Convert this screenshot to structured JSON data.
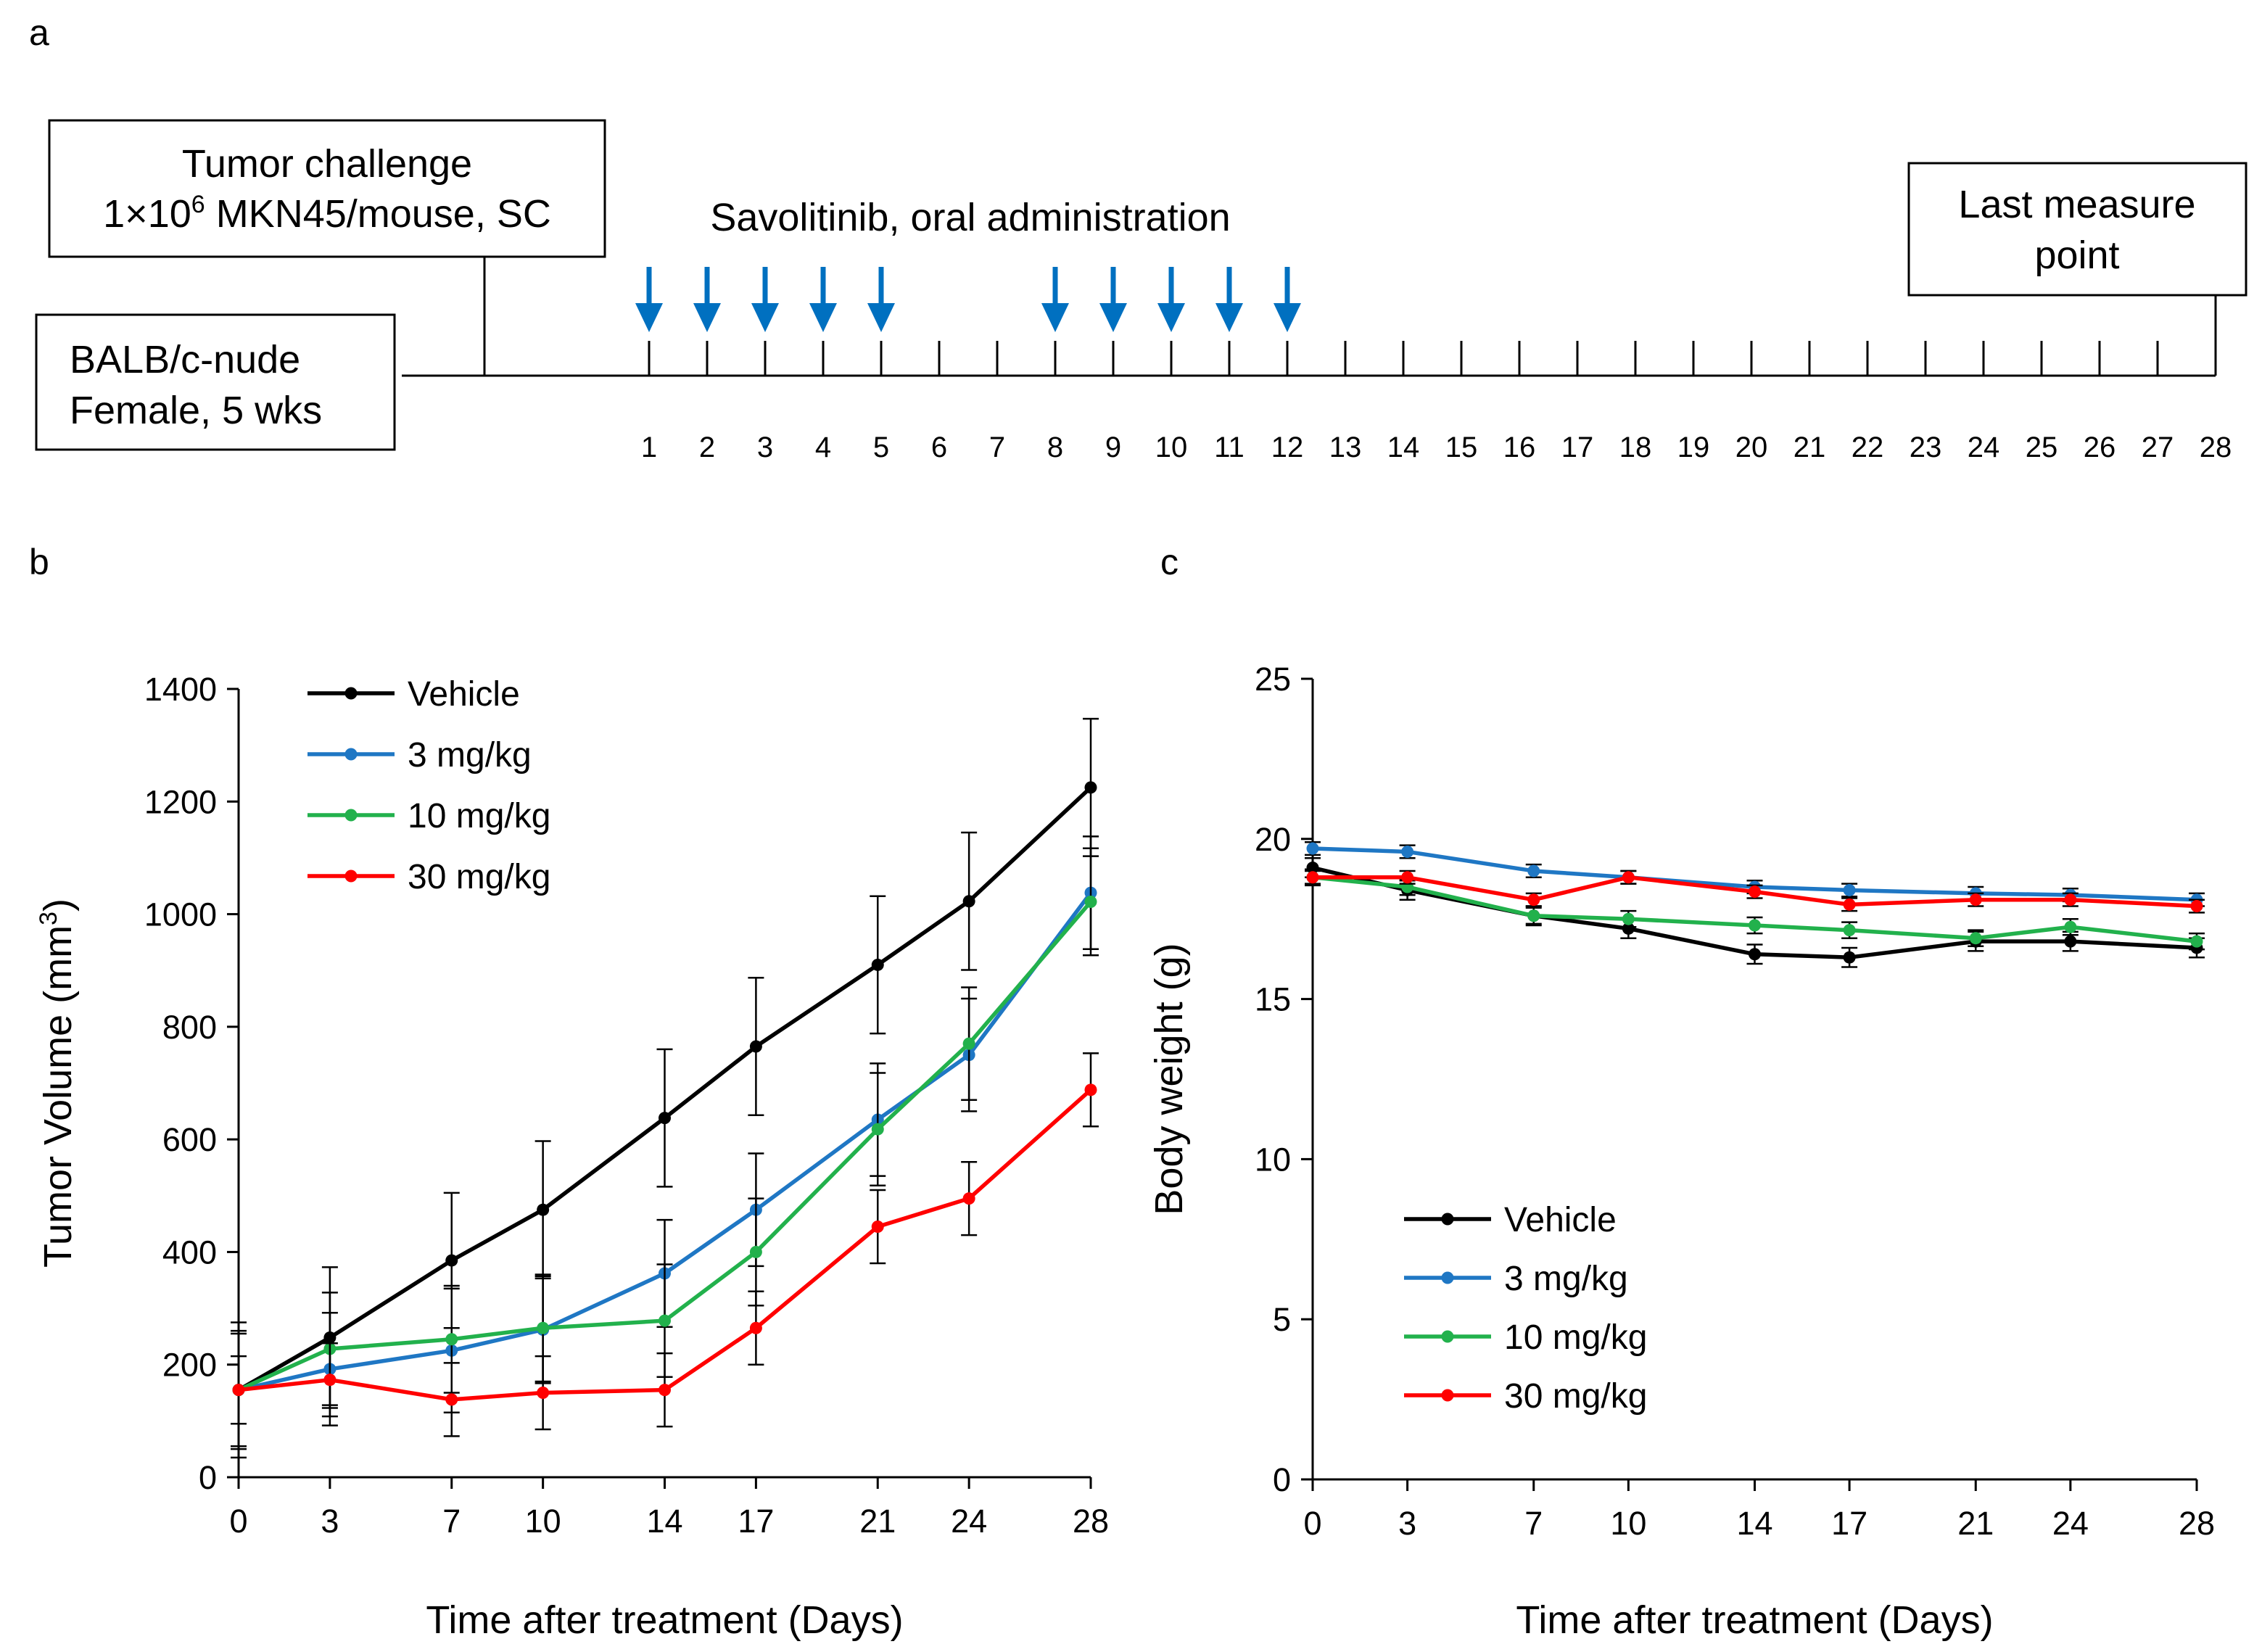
{
  "panel_labels": {
    "a": "a",
    "b": "b",
    "c": "c"
  },
  "timeline": {
    "challenge_line1": "Tumor challenge",
    "challenge_line2_prefix": "1×10",
    "challenge_line2_sup": "6",
    "challenge_line2_suffix": " MKN45/mouse, SC",
    "mouse_line1": "BALB/c-nude",
    "mouse_line2": "Female, 5 wks",
    "drug_label": "Savolitinib, oral administration",
    "last_line1": "Last measure",
    "last_line2": "point",
    "days": [
      "1",
      "2",
      "3",
      "4",
      "5",
      "6",
      "7",
      "8",
      "9",
      "10",
      "11",
      "12",
      "13",
      "14",
      "15",
      "16",
      "17",
      "18",
      "19",
      "20",
      "21",
      "22",
      "23",
      "24",
      "25",
      "26",
      "27",
      "28"
    ],
    "dose_days": [
      1,
      2,
      3,
      4,
      5,
      8,
      9,
      10,
      11,
      12
    ],
    "arrow_color": "#0070c0"
  },
  "chart_data": [
    {
      "id": "b",
      "type": "line",
      "title": "",
      "xlabel": "Time after treatment (Days)",
      "ylabel_main": "Tumor Volume (mm",
      "ylabel_sup": "3",
      "ylabel_end": ")",
      "x": [
        0,
        3,
        7,
        10,
        14,
        17,
        21,
        24,
        28
      ],
      "xtick_labels": [
        "0",
        "3",
        "7",
        "10",
        "14",
        "17",
        "21",
        "24",
        "28"
      ],
      "ylim": [
        0,
        1400
      ],
      "yticks": [
        0,
        200,
        400,
        600,
        800,
        1000,
        1200,
        1400
      ],
      "legend_position": "top-left",
      "series": [
        {
          "name": "Vehicle",
          "color": "#000000",
          "values": [
            155,
            248,
            385,
            475,
            638,
            765,
            910,
            1023,
            1225
          ],
          "errors": [
            120,
            125,
            120,
            122,
            122,
            122,
            122,
            122,
            122
          ]
        },
        {
          "name": "3 mg/kg",
          "color": "#1f77c4",
          "values": [
            155,
            192,
            225,
            262,
            362,
            475,
            635,
            750,
            1038
          ],
          "errors": [
            100,
            100,
            110,
            95,
            95,
            100,
            100,
            100,
            100
          ]
        },
        {
          "name": "10 mg/kg",
          "color": "#22b14c",
          "values": [
            155,
            228,
            245,
            265,
            278,
            400,
            618,
            770,
            1022
          ],
          "errors": [
            105,
            100,
            95,
            95,
            100,
            95,
            100,
            100,
            95
          ]
        },
        {
          "name": "30 mg/kg",
          "color": "#ff0000",
          "values": [
            155,
            173,
            138,
            150,
            155,
            265,
            445,
            495,
            688
          ],
          "errors": [
            60,
            65,
            65,
            65,
            65,
            65,
            65,
            65,
            65
          ]
        }
      ]
    },
    {
      "id": "c",
      "type": "line",
      "title": "",
      "xlabel": "Time after treatment (Days)",
      "ylabel": "Body weight (g)",
      "x": [
        0,
        3,
        7,
        10,
        14,
        17,
        21,
        24,
        28
      ],
      "xtick_labels": [
        "0",
        "3",
        "7",
        "10",
        "14",
        "17",
        "21",
        "24",
        "28"
      ],
      "ylim": [
        0,
        25
      ],
      "yticks": [
        0,
        5,
        10,
        15,
        20,
        25
      ],
      "legend_position": "bottom-left",
      "series": [
        {
          "name": "Vehicle",
          "color": "#000000",
          "values": [
            19.1,
            18.4,
            17.6,
            17.2,
            16.4,
            16.3,
            16.8,
            16.8,
            16.6
          ],
          "errors": [
            0.3,
            0.3,
            0.3,
            0.3,
            0.3,
            0.3,
            0.3,
            0.3,
            0.3
          ]
        },
        {
          "name": "3 mg/kg",
          "color": "#1f77c4",
          "values": [
            19.7,
            19.6,
            19.0,
            18.8,
            18.5,
            18.4,
            18.3,
            18.25,
            18.1
          ],
          "errors": [
            0.2,
            0.2,
            0.2,
            0.2,
            0.2,
            0.2,
            0.2,
            0.2,
            0.2
          ]
        },
        {
          "name": "10 mg/kg",
          "color": "#22b14c",
          "values": [
            18.8,
            18.5,
            17.6,
            17.5,
            17.3,
            17.15,
            16.9,
            17.25,
            16.8
          ],
          "errors": [
            0.25,
            0.25,
            0.25,
            0.25,
            0.25,
            0.25,
            0.25,
            0.25,
            0.25
          ]
        },
        {
          "name": "30 mg/kg",
          "color": "#ff0000",
          "values": [
            18.8,
            18.8,
            18.1,
            18.8,
            18.35,
            17.95,
            18.1,
            18.1,
            17.9
          ],
          "errors": [
            0.2,
            0.2,
            0.2,
            0.2,
            0.2,
            0.2,
            0.2,
            0.2,
            0.2
          ]
        }
      ]
    }
  ]
}
